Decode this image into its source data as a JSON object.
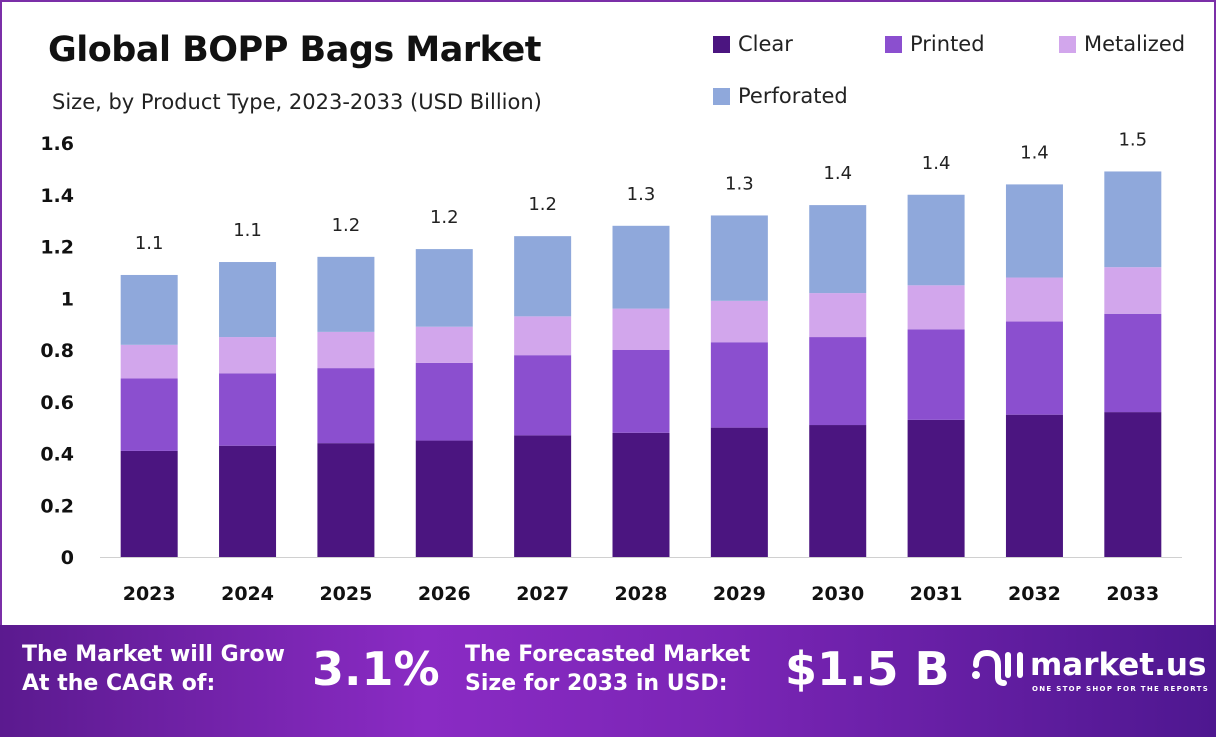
{
  "chart_data": {
    "type": "bar",
    "stacked": true,
    "title": "Global BOPP Bags Market",
    "subtitle": "Size, by Product Type, 2023-2033 (USD Billion)",
    "categories": [
      "2023",
      "2024",
      "2025",
      "2026",
      "2027",
      "2028",
      "2029",
      "2030",
      "2031",
      "2032",
      "2033"
    ],
    "series": [
      {
        "name": "Clear",
        "color": "#4b1580",
        "values": [
          0.41,
          0.43,
          0.44,
          0.45,
          0.47,
          0.48,
          0.5,
          0.51,
          0.53,
          0.55,
          0.56
        ]
      },
      {
        "name": "Printed",
        "color": "#8b4fcf",
        "values": [
          0.28,
          0.28,
          0.29,
          0.3,
          0.31,
          0.32,
          0.33,
          0.34,
          0.35,
          0.36,
          0.38
        ]
      },
      {
        "name": "Metalized",
        "color": "#d2a6ec",
        "values": [
          0.13,
          0.14,
          0.14,
          0.14,
          0.15,
          0.16,
          0.16,
          0.17,
          0.17,
          0.17,
          0.18
        ]
      },
      {
        "name": "Perforated",
        "color": "#8fa8db",
        "values": [
          0.27,
          0.29,
          0.29,
          0.3,
          0.31,
          0.32,
          0.33,
          0.34,
          0.35,
          0.36,
          0.37
        ]
      }
    ],
    "total_labels": [
      "1.1",
      "1.1",
      "1.2",
      "1.2",
      "1.2",
      "1.3",
      "1.3",
      "1.4",
      "1.4",
      "1.4",
      "1.5"
    ],
    "yticks": [
      "0",
      "0.2",
      "0.4",
      "0.6",
      "0.8",
      "1",
      "1.2",
      "1.4",
      "1.6"
    ],
    "ylim": [
      0,
      1.6
    ],
    "xlabel": "",
    "ylabel": "",
    "grid": false,
    "legend_position": "top-right"
  },
  "footer": {
    "cagr_label_1": "The Market will Grow",
    "cagr_label_2": "At the CAGR of:",
    "cagr_value": "3.1%",
    "forecast_label_1": "The Forecasted Market",
    "forecast_label_2": "Size for 2033 in USD:",
    "forecast_value": "$1.5 B",
    "brand": "market.us",
    "brand_tagline": "ONE STOP SHOP FOR THE REPORTS"
  }
}
